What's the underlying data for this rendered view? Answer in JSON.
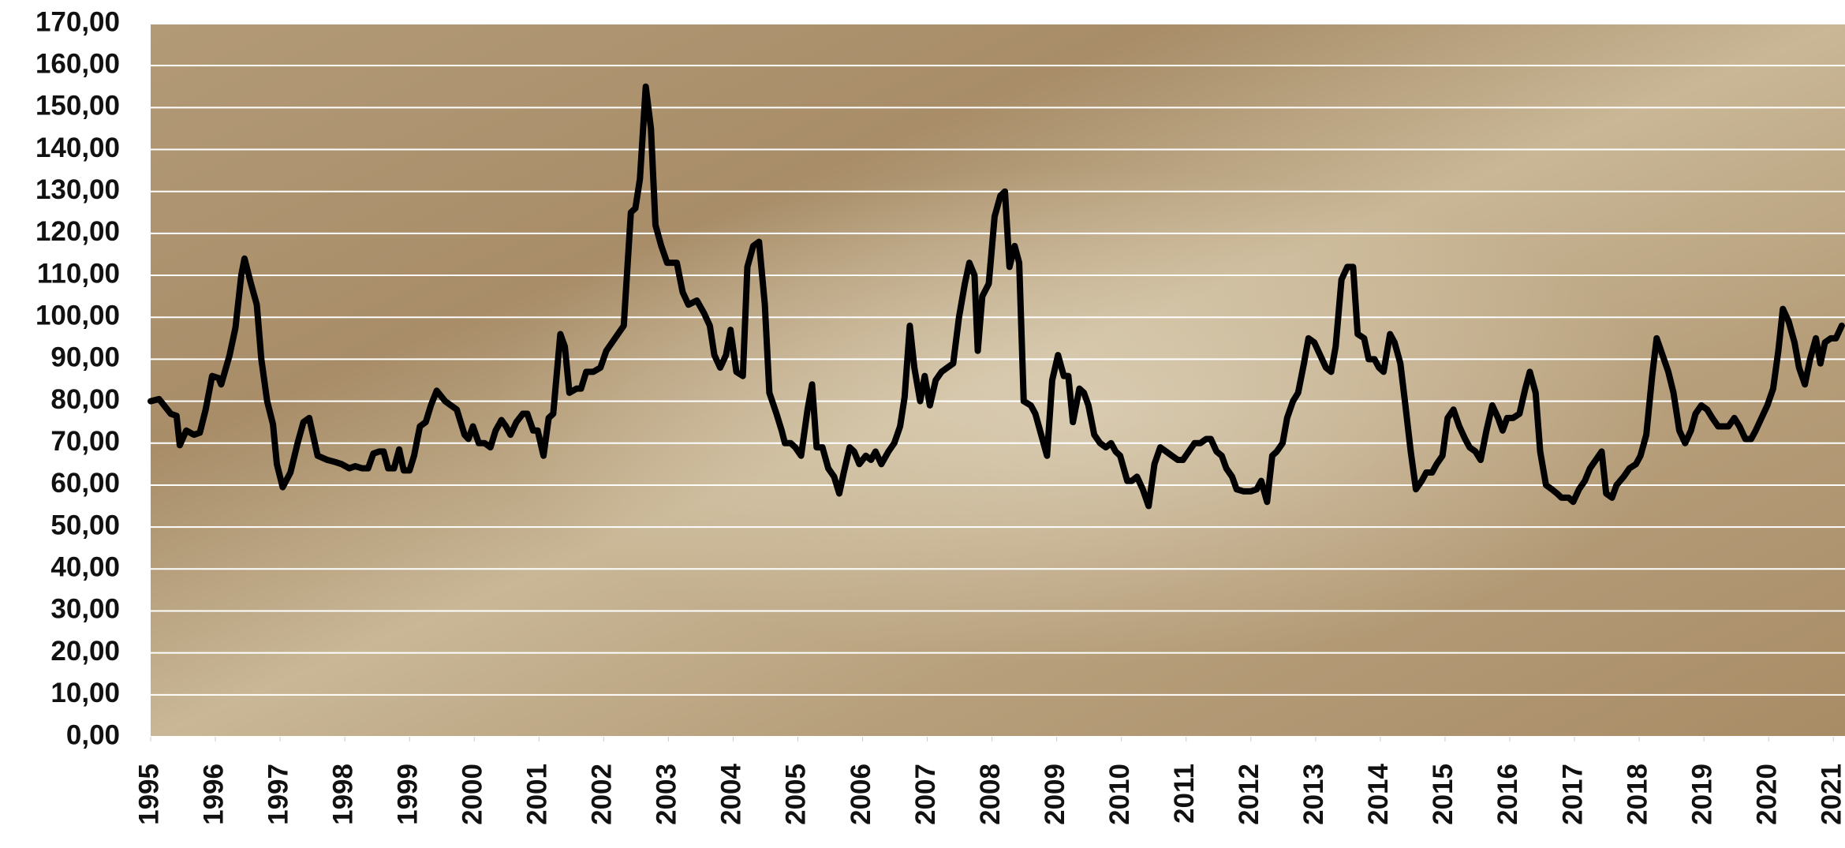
{
  "chart_data": {
    "type": "line",
    "x": [
      1995.0,
      1995.13,
      1995.31,
      1995.4,
      1995.45,
      1995.55,
      1995.67,
      1995.76,
      1995.85,
      1995.95,
      1996.05,
      1996.09,
      1996.22,
      1996.31,
      1996.4,
      1996.45,
      1996.55,
      1996.64,
      1996.71,
      1996.8,
      1996.89,
      1996.95,
      1997.04,
      1997.16,
      1997.27,
      1997.36,
      1997.45,
      1997.58,
      1997.73,
      1997.85,
      1997.95,
      1998.07,
      1998.16,
      1998.27,
      1998.36,
      1998.44,
      1998.53,
      1998.6,
      1998.67,
      1998.76,
      1998.84,
      1998.91,
      1999.0,
      1999.07,
      1999.16,
      1999.25,
      1999.33,
      1999.42,
      1999.55,
      1999.73,
      1999.85,
      1999.91,
      1999.98,
      2000.07,
      2000.16,
      2000.25,
      2000.33,
      2000.42,
      2000.49,
      2000.56,
      2000.65,
      2000.75,
      2000.82,
      2000.91,
      2000.98,
      2001.07,
      2001.15,
      2001.22,
      2001.33,
      2001.4,
      2001.47,
      2001.58,
      2001.65,
      2001.73,
      2001.84,
      2001.95,
      2002.04,
      2002.13,
      2002.22,
      2002.31,
      2002.42,
      2002.49,
      2002.56,
      2002.65,
      2002.73,
      2002.8,
      2002.89,
      2002.98,
      2003.13,
      2003.22,
      2003.31,
      2003.44,
      2003.55,
      2003.64,
      2003.71,
      2003.8,
      2003.89,
      2003.96,
      2004.05,
      2004.15,
      2004.22,
      2004.31,
      2004.4,
      2004.49,
      2004.56,
      2004.67,
      2004.75,
      2004.8,
      2004.89,
      2004.96,
      2005.05,
      2005.15,
      2005.22,
      2005.29,
      2005.38,
      2005.47,
      2005.56,
      2005.64,
      2005.71,
      2005.8,
      2005.87,
      2005.95,
      2006.05,
      2006.13,
      2006.2,
      2006.29,
      2006.4,
      2006.49,
      2006.58,
      2006.65,
      2006.73,
      2006.8,
      2006.89,
      2006.96,
      2007.04,
      2007.13,
      2007.22,
      2007.31,
      2007.4,
      2007.49,
      2007.58,
      2007.65,
      2007.73,
      2007.78,
      2007.85,
      2007.95,
      2008.04,
      2008.13,
      2008.2,
      2008.27,
      2008.35,
      2008.42,
      2008.49,
      2008.6,
      2008.67,
      2008.76,
      2008.85,
      2008.93,
      2009.02,
      2009.11,
      2009.18,
      2009.25,
      2009.35,
      2009.42,
      2009.49,
      2009.58,
      2009.67,
      2009.76,
      2009.84,
      2009.91,
      2009.98,
      2010.09,
      2010.16,
      2010.24,
      2010.33,
      2010.42,
      2010.51,
      2010.6,
      2010.69,
      2010.78,
      2010.87,
      2010.95,
      2011.04,
      2011.13,
      2011.22,
      2011.31,
      2011.38,
      2011.47,
      2011.55,
      2011.62,
      2011.71,
      2011.78,
      2011.89,
      2012.0,
      2012.09,
      2012.16,
      2012.25,
      2012.33,
      2012.4,
      2012.49,
      2012.56,
      2012.65,
      2012.73,
      2012.82,
      2012.89,
      2012.98,
      2013.07,
      2013.16,
      2013.24,
      2013.31,
      2013.4,
      2013.49,
      2013.58,
      2013.65,
      2013.75,
      2013.82,
      2013.91,
      2013.98,
      2014.05,
      2014.15,
      2014.22,
      2014.31,
      2014.38,
      2014.47,
      2014.55,
      2014.64,
      2014.71,
      2014.8,
      2014.87,
      2014.96,
      2015.04,
      2015.13,
      2015.22,
      2015.31,
      2015.38,
      2015.47,
      2015.55,
      2015.64,
      2015.73,
      2015.82,
      2015.89,
      2015.96,
      2016.05,
      2016.15,
      2016.24,
      2016.31,
      2016.4,
      2016.47,
      2016.56,
      2016.65,
      2016.73,
      2016.8,
      2016.91,
      2016.98,
      2017.07,
      2017.16,
      2017.24,
      2017.33,
      2017.42,
      2017.49,
      2017.58,
      2017.65,
      2017.76,
      2017.85,
      2017.95,
      2018.02,
      2018.11,
      2018.2,
      2018.27,
      2018.36,
      2018.45,
      2018.53,
      2018.62,
      2018.71,
      2018.8,
      2018.87,
      2018.96,
      2019.05,
      2019.13,
      2019.22,
      2019.31,
      2019.38,
      2019.47,
      2019.55,
      2019.64,
      2019.73,
      2019.8,
      2019.89,
      2019.98,
      2020.07,
      2020.15,
      2020.22,
      2020.31,
      2020.4,
      2020.47,
      2020.56,
      2020.64,
      2020.73,
      2020.8,
      2020.87,
      2020.96,
      2021.04,
      2021.13
    ],
    "values": [
      80,
      80.5,
      77,
      76.5,
      69.5,
      73,
      72,
      72.5,
      78,
      86,
      85.5,
      84,
      91,
      97.5,
      110,
      114,
      108,
      103,
      90,
      80,
      74.5,
      65,
      59.5,
      63,
      70,
      75,
      76,
      67,
      66,
      65.5,
      65,
      64,
      64.5,
      64,
      64,
      67.5,
      68,
      68,
      64,
      64,
      68.5,
      63.5,
      63.5,
      67,
      74,
      75,
      79,
      82.5,
      80,
      78,
      72,
      71,
      74,
      70,
      70,
      69,
      73,
      75.5,
      74,
      72,
      75,
      77,
      77,
      73,
      73,
      67,
      76,
      77,
      96,
      93,
      82,
      83,
      83,
      87,
      87,
      88,
      92,
      94,
      96,
      98,
      125,
      126,
      133,
      155,
      145,
      122,
      117,
      113,
      113,
      106,
      103,
      104,
      101,
      98,
      91,
      88,
      91,
      97,
      87,
      86,
      112,
      117,
      118,
      103,
      82,
      77,
      73,
      70,
      70,
      69,
      67,
      78,
      84,
      69,
      69,
      64,
      62,
      58,
      63,
      69,
      68,
      65,
      67,
      66,
      68,
      65,
      68,
      70,
      74,
      81,
      98,
      88,
      80,
      86,
      79,
      85,
      87,
      88,
      89,
      100,
      108,
      113,
      110,
      92,
      105,
      108,
      124,
      129,
      130,
      112,
      117,
      113,
      80,
      79,
      77,
      72,
      67,
      85,
      91,
      86,
      86,
      75,
      83,
      82,
      79,
      72,
      70,
      69,
      70,
      68,
      67,
      61,
      61,
      62,
      59,
      55,
      65,
      69,
      68,
      67,
      66,
      66,
      68,
      70,
      70,
      71,
      71,
      68,
      67,
      64,
      62,
      59,
      58.5,
      58.5,
      59,
      61,
      56,
      67,
      68,
      70,
      76,
      80,
      82,
      89,
      95,
      94,
      91,
      88,
      87,
      93,
      109,
      112,
      112,
      96,
      95,
      90,
      90,
      88,
      87,
      96,
      94,
      89,
      80,
      68,
      59,
      61,
      63,
      63,
      65,
      67,
      76,
      78,
      74,
      71,
      69,
      68,
      66,
      73,
      79,
      76,
      73,
      76,
      76,
      77,
      83,
      87,
      82,
      68,
      60,
      59,
      58,
      57,
      57,
      56,
      59,
      61,
      64,
      66,
      68,
      58,
      57,
      60,
      62,
      64,
      65,
      67,
      72,
      86,
      95,
      91,
      87,
      82,
      73,
      70,
      73,
      77,
      79,
      78,
      76,
      74,
      74,
      74,
      76,
      74,
      71,
      71,
      73,
      76,
      79,
      83,
      92,
      102,
      99,
      94,
      88,
      84,
      90,
      95,
      89,
      94,
      95,
      95,
      98
    ],
    "color": "#000000",
    "xlim": [
      1995,
      2021.18
    ],
    "xticks": [
      1995,
      1996,
      1997,
      1998,
      1999,
      2000,
      2001,
      2002,
      2003,
      2004,
      2005,
      2006,
      2007,
      2008,
      2009,
      2010,
      2011,
      2012,
      2013,
      2014,
      2015,
      2016,
      2017,
      2018,
      2019,
      2020,
      2021
    ],
    "ylim": [
      0,
      170
    ],
    "yticks": [
      {
        "value": 0,
        "label": "0,00"
      },
      {
        "value": 10,
        "label": "10,00"
      },
      {
        "value": 20,
        "label": "20,00"
      },
      {
        "value": 30,
        "label": "30,00"
      },
      {
        "value": 40,
        "label": "40,00"
      },
      {
        "value": 50,
        "label": "50,00"
      },
      {
        "value": 60,
        "label": "60,00"
      },
      {
        "value": 70,
        "label": "70,00"
      },
      {
        "value": 80,
        "label": "80,00"
      },
      {
        "value": 90,
        "label": "90,00"
      },
      {
        "value": 100,
        "label": "100,00"
      },
      {
        "value": 110,
        "label": "110,00"
      },
      {
        "value": 120,
        "label": "120,00"
      },
      {
        "value": 130,
        "label": "130,00"
      },
      {
        "value": 140,
        "label": "140,00"
      },
      {
        "value": 150,
        "label": "150,00"
      },
      {
        "value": 160,
        "label": "160,00"
      },
      {
        "value": 170,
        "label": "170,00"
      }
    ],
    "grid": true
  }
}
